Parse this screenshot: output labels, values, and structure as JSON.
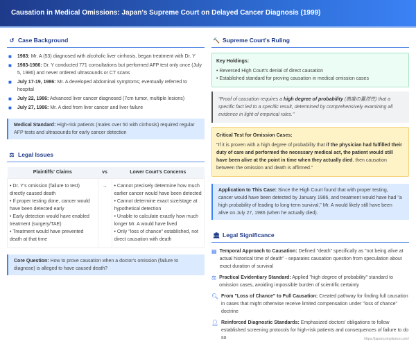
{
  "title": "Causation in Medical Omissions: Japan's Supreme Court on Delayed Cancer Diagnosis (1999)",
  "background": {
    "heading": "Case Background",
    "items": [
      {
        "label": "1983:",
        "text": " Mr. A (53) diagnosed with alcoholic liver cirrhosis, began treatment with Dr. Y"
      },
      {
        "label": "1983-1986:",
        "text": " Dr. Y conducted 771 consultations but performed AFP test only once (July 5, 1986) and never ordered ultrasounds or CT scans"
      },
      {
        "label": "July 17-19, 1986:",
        "text": " Mr. A developed abdominal symptoms; eventually referred to hospital"
      },
      {
        "label": "July 22, 1986:",
        "text": " Advanced liver cancer diagnosed (7cm tumor, multiple lesions)"
      },
      {
        "label": "July 27, 1986:",
        "text": " Mr. A died from liver cancer and liver failure"
      }
    ],
    "standard_label": "Medical Standard:",
    "standard_text": " High-risk patients (males over 50 with cirrhosis) required regular AFP tests and ultrasounds for early cancer detection"
  },
  "issues": {
    "heading": "Legal Issues",
    "col1": "Plaintiffs' Claims",
    "vs": "vs",
    "col2": "Lower Court's Concerns",
    "arrow": "→",
    "claims": [
      "• Dr. Y's omission (failure to test) directly caused death",
      "• If proper testing done, cancer would have been detected early",
      "• Early detection would have enabled treatment (surgery/TAE)",
      "• Treatment would have prevented death at that time"
    ],
    "concerns": [
      "• Cannot precisely determine how much earlier cancer would have been detected",
      "• Cannot determine exact size/stage at hypothetical detection",
      "• Unable to calculate exactly how much longer Mr. A would have lived",
      "• Only \"loss of chance\" established, not direct causation with death"
    ],
    "core_label": "Core Question:",
    "core_text": " How to prove causation when a doctor's omission (failure to diagnose) is alleged to have caused death?"
  },
  "ruling": {
    "heading": "Supreme Court's Ruling",
    "holdings_title": "Key Holdings:",
    "holdings": [
      "• Reversed High Court's denial of direct causation",
      "• Established standard for proving causation in medical omission cases"
    ],
    "quote_a": "\"Proof of causation requires a ",
    "quote_b": "high degree of probability",
    "quote_c": " (高度の蓋然性) that a specific fact led to a specific result, determined by comprehensively examining all evidence in light of empirical rules.\"",
    "test_title": "Critical Test for Omission Cases:",
    "test_a": "\"If it is proven with a high degree of probability that ",
    "test_b": "if the physician had fulfilled their duty of care and performed the necessary medical act, the patient would still have been alive at the point in time when they actually died",
    "test_c": ", then causation between the omission and death is affirmed.\"",
    "app_label": "Application to This Case:",
    "app_text": " Since the High Court found that with proper testing, cancer would have been detected by January 1986, and treatment would have had \"a high probability of leading to long-term survival,\" Mr. A would likely still have been alive on July 27, 1986 (when he actually died)."
  },
  "significance": {
    "heading": "Legal Significance",
    "items": [
      {
        "icon": "calendar-icon",
        "label": "Temporal Approach to Causation:",
        "text": " Defined \"death\" specifically as \"not being alive at actual historical time of death\" - separates causation question from speculation about exact duration of survival"
      },
      {
        "icon": "scale-icon",
        "label": "Practical Evidentiary Standard:",
        "text": " Applied \"high degree of probability\" standard to omission cases, avoiding impossible burden of scientific certainty"
      },
      {
        "icon": "search-icon",
        "label": "From \"Loss of Chance\" to Full Causation:",
        "text": " Created pathway for finding full causation in cases that might otherwise receive limited compensation under \"loss of chance\" doctrine"
      },
      {
        "icon": "user-icon",
        "label": "Reinforced Diagnostic Standards:",
        "text": " Emphasized doctors' obligations to follow established screening protocols for high-risk patients and consequences of failure to do so"
      }
    ]
  },
  "footer": "https://japancompliance.com/"
}
